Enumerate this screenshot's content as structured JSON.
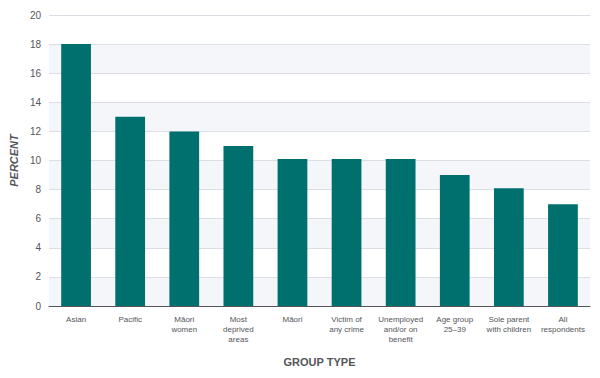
{
  "chart_data": {
    "type": "bar",
    "categories": [
      "Asian",
      "Pacific",
      "Māori\nwomen",
      "Most\ndeprived\nareas",
      "Māori",
      "Victim of\nany crime",
      "Unemployed\nand/or on\nbenefit",
      "Age group\n25–39",
      "Sole parent\nwith children",
      "All\nrespondents"
    ],
    "values": [
      18,
      13,
      12,
      11,
      10.1,
      10.1,
      10.1,
      9,
      8.1,
      7
    ],
    "color": "#00706e",
    "xlabel": "GROUP TYPE",
    "ylabel": "PERCENT",
    "ylim": [
      0,
      20
    ],
    "yticks": [
      0,
      2,
      4,
      6,
      8,
      10,
      12,
      14,
      16,
      18,
      20
    ],
    "grid": true
  }
}
